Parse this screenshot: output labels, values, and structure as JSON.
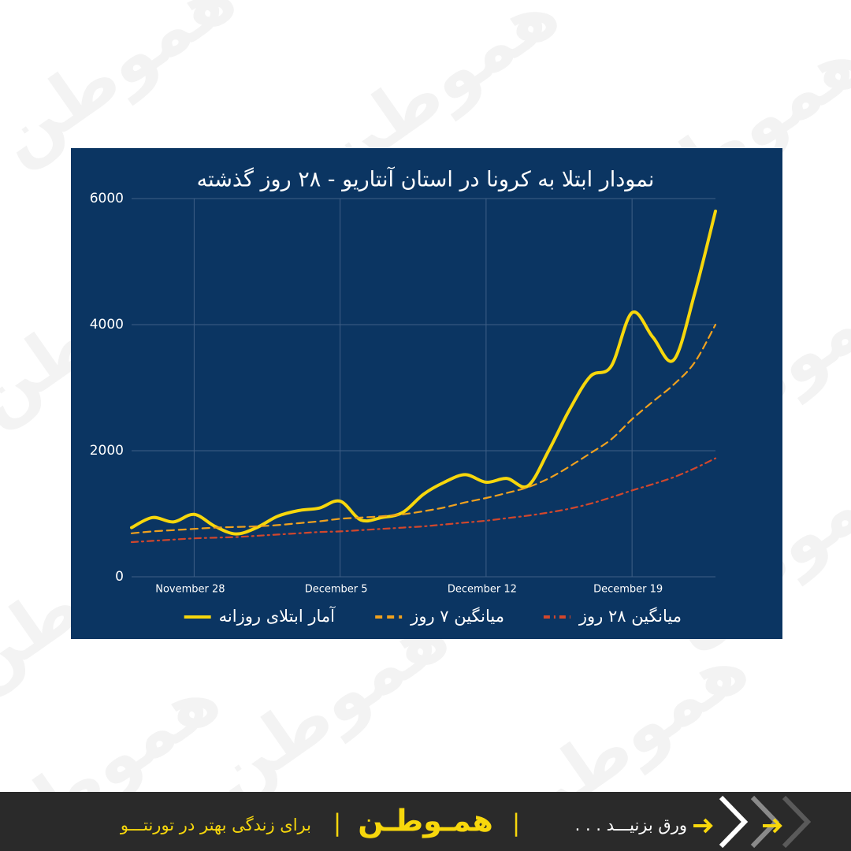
{
  "watermark": "هموطن",
  "chart_data": {
    "type": "line",
    "title": "نمودار ابتلا به کرونا در استان آنتاریو - ۲۸ روز گذشته",
    "x": [
      "November 25",
      "November 26",
      "November 27",
      "November 28",
      "November 29",
      "November 30",
      "December 1",
      "December 2",
      "December 3",
      "December 4",
      "December 5",
      "December 6",
      "December 7",
      "December 8",
      "December 9",
      "December 10",
      "December 11",
      "December 12",
      "December 13",
      "December 14",
      "December 15",
      "December 16",
      "December 17",
      "December 18",
      "December 19",
      "December 20",
      "December 21",
      "December 22",
      "December 23"
    ],
    "xticks": [
      "November 28",
      "December 5",
      "December 12",
      "December 19"
    ],
    "ylim": [
      0,
      6000
    ],
    "yticks": [
      0,
      2000,
      4000,
      6000
    ],
    "grid": true,
    "series": [
      {
        "name": "آمار ابتلای روزانه",
        "color": "#f7d70c",
        "style": "solid",
        "values": [
          780,
          940,
          870,
          990,
          800,
          680,
          780,
          960,
          1050,
          1090,
          1200,
          900,
          940,
          1020,
          1310,
          1500,
          1620,
          1500,
          1560,
          1440,
          2000,
          2650,
          3180,
          3340,
          4190,
          3800,
          3440,
          4490,
          5800
        ]
      },
      {
        "name": "میانگین ۷ روز",
        "color": "#f0a11e",
        "style": "dashed",
        "values": [
          690,
          720,
          740,
          760,
          780,
          790,
          800,
          820,
          850,
          880,
          920,
          940,
          960,
          990,
          1040,
          1100,
          1180,
          1250,
          1330,
          1420,
          1560,
          1750,
          1960,
          2180,
          2500,
          2780,
          3050,
          3400,
          4000
        ]
      },
      {
        "name": "میانگین ۲۸ روز",
        "color": "#d2472c",
        "style": "dashdot",
        "values": [
          550,
          570,
          590,
          610,
          620,
          630,
          650,
          670,
          690,
          710,
          720,
          740,
          760,
          780,
          800,
          830,
          860,
          890,
          930,
          970,
          1020,
          1080,
          1160,
          1260,
          1370,
          1470,
          1580,
          1720,
          1880
        ]
      }
    ]
  },
  "footer": {
    "swipe": "ورق بزنیـــد . . .",
    "logo": "همـوطـن",
    "tagline": "برای زندگی بهتر در تورنتـــو",
    "separator": "|"
  }
}
